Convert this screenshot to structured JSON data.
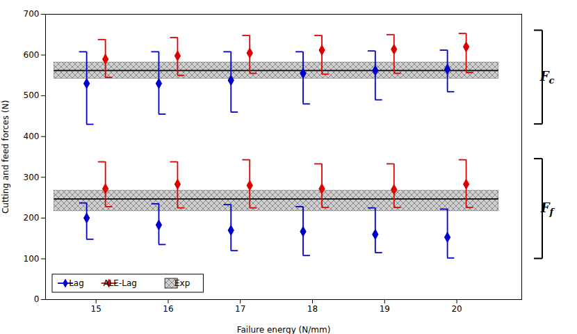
{
  "chart_data": {
    "type": "errorbar",
    "xlabel": "Failure energy (N/mm)",
    "ylabel": "Cutting and feed forces (N)",
    "x": [
      15,
      16,
      17,
      18,
      19,
      20
    ],
    "xlim": [
      14.3,
      20.9
    ],
    "xticks": [
      15,
      16,
      17,
      18,
      19,
      20
    ],
    "ylim": [
      0,
      700
    ],
    "yticks": [
      0,
      100,
      200,
      300,
      400,
      500,
      600,
      700
    ],
    "grid": false,
    "legend": "lower left",
    "series": [
      {
        "name": "Lag",
        "color": "#0000CC",
        "marker": "diamond",
        "groups": [
          {
            "values": [
              530,
              530,
              538,
              555,
              562,
              565
            ],
            "lower": [
              430,
              455,
              460,
              480,
              490,
              510
            ],
            "upper": [
              608,
              608,
              608,
              608,
              610,
              612
            ]
          },
          {
            "values": [
              200,
              183,
              170,
              167,
              160,
              153
            ],
            "lower": [
              148,
              135,
              120,
              108,
              115,
              102
            ],
            "upper": [
              237,
              235,
              233,
              228,
              225,
              222
            ]
          }
        ]
      },
      {
        "name": "ALE-Lag",
        "color": "#DD0000",
        "marker": "diamond",
        "groups": [
          {
            "values": [
              590,
              598,
              605,
              612,
              614,
              620
            ],
            "lower": [
              545,
              550,
              555,
              553,
              555,
              557
            ],
            "upper": [
              638,
              643,
              648,
              648,
              650,
              653
            ]
          },
          {
            "values": [
              272,
              283,
              280,
              272,
              270,
              283
            ],
            "lower": [
              228,
              225,
              225,
              226,
              226,
              226
            ],
            "upper": [
              338,
              338,
              343,
              333,
              333,
              343
            ]
          }
        ]
      }
    ],
    "reference": {
      "name": "Exp",
      "bands": [
        {
          "mean": 562,
          "lower": 542,
          "upper": 582
        },
        {
          "mean": 247,
          "lower": 217,
          "upper": 267
        }
      ]
    },
    "annotations": [
      {
        "text": "Fc",
        "y_range": [
          430,
          660
        ]
      },
      {
        "text": "Ff",
        "y_range": [
          100,
          345
        ]
      }
    ]
  }
}
